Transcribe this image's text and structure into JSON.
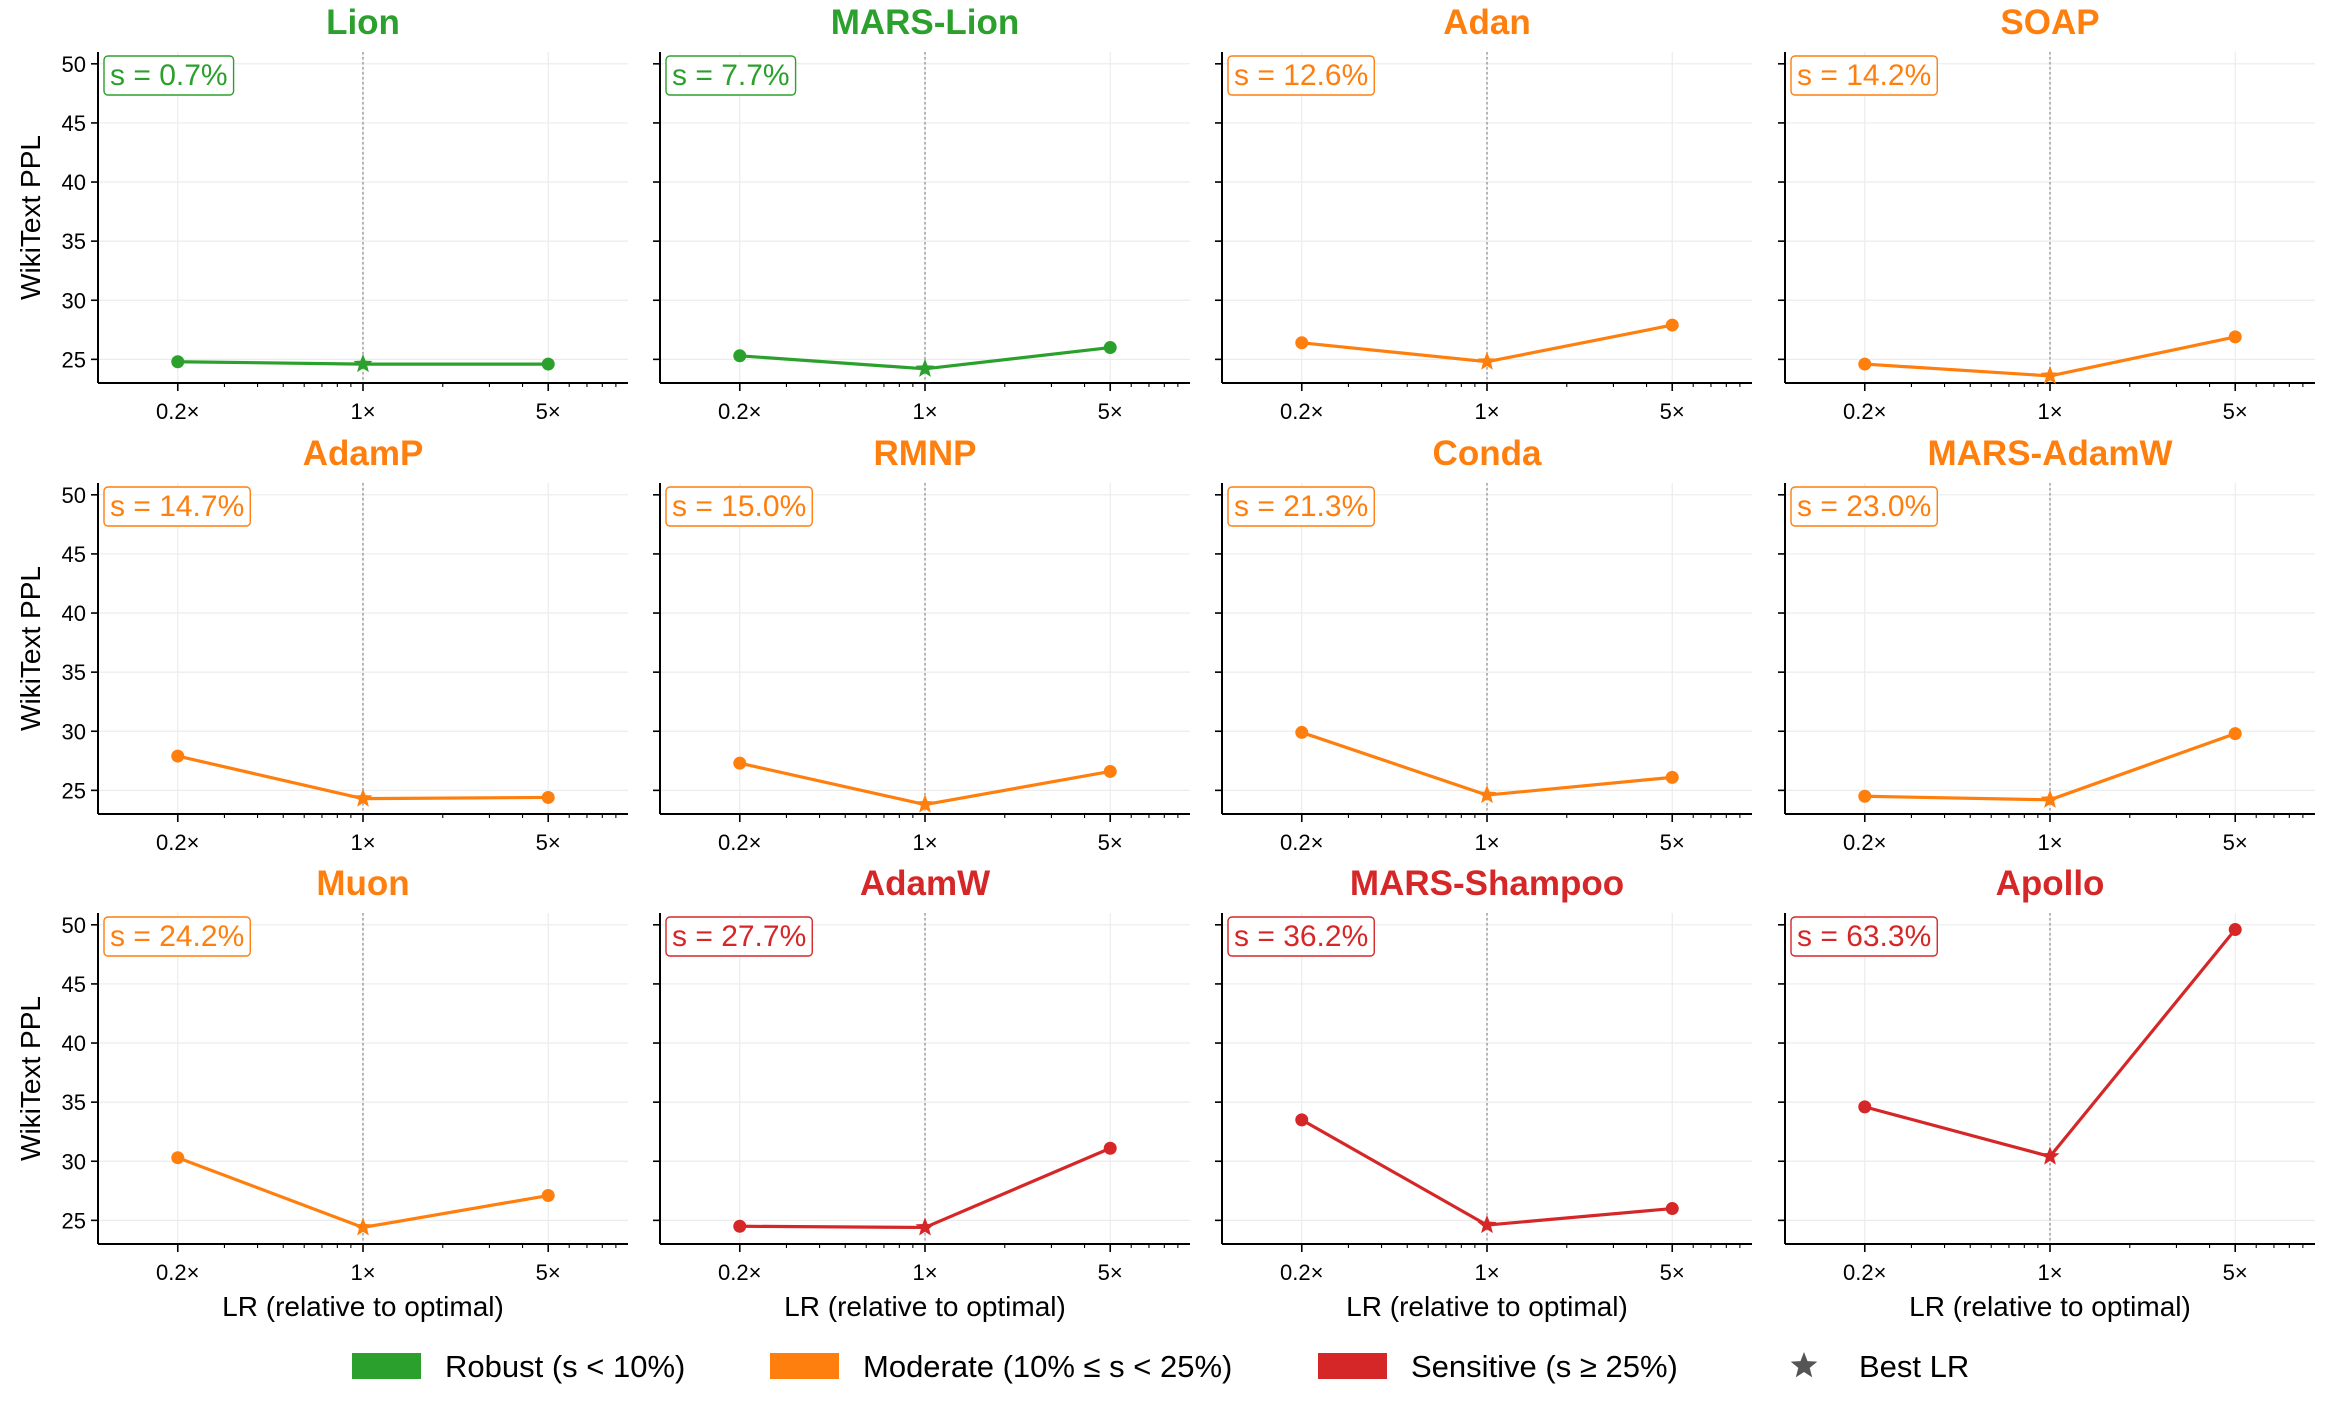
{
  "chart_data": {
    "type": "line",
    "x_categories": [
      "0.2×",
      "1×",
      "5×"
    ],
    "x_multipliers": [
      0.2,
      1,
      5
    ],
    "xscale": "log",
    "xlabel": "LR (relative to optimal)",
    "ylabel": "WikiText PPL",
    "ylim": [
      23,
      51
    ],
    "yticks": [
      25,
      30,
      35,
      40,
      45,
      50
    ],
    "grid": true,
    "colors": {
      "robust": "#2ca02c",
      "moderate": "#ff7f0e",
      "sensitive": "#d62728",
      "star": "#555555"
    },
    "panels": [
      {
        "title": "Lion",
        "sensitivity": "s = 0.7%",
        "category": "robust",
        "values": [
          24.8,
          24.6,
          24.6
        ],
        "best_index": 1
      },
      {
        "title": "MARS-Lion",
        "sensitivity": "s = 7.7%",
        "category": "robust",
        "values": [
          25.3,
          24.2,
          26.0
        ],
        "best_index": 1
      },
      {
        "title": "Adan",
        "sensitivity": "s = 12.6%",
        "category": "moderate",
        "values": [
          26.4,
          24.8,
          27.9
        ],
        "best_index": 1
      },
      {
        "title": "SOAP",
        "sensitivity": "s = 14.2%",
        "category": "moderate",
        "values": [
          24.6,
          23.6,
          26.9
        ],
        "best_index": 1
      },
      {
        "title": "AdamP",
        "sensitivity": "s = 14.7%",
        "category": "moderate",
        "values": [
          27.9,
          24.3,
          24.4
        ],
        "best_index": 1
      },
      {
        "title": "RMNP",
        "sensitivity": "s = 15.0%",
        "category": "moderate",
        "values": [
          27.3,
          23.8,
          26.6
        ],
        "best_index": 1
      },
      {
        "title": "Conda",
        "sensitivity": "s = 21.3%",
        "category": "moderate",
        "values": [
          29.9,
          24.6,
          26.1
        ],
        "best_index": 1
      },
      {
        "title": "MARS-AdamW",
        "sensitivity": "s = 23.0%",
        "category": "moderate",
        "values": [
          24.5,
          24.2,
          29.8
        ],
        "best_index": 1
      },
      {
        "title": "Muon",
        "sensitivity": "s = 24.2%",
        "category": "moderate",
        "values": [
          30.3,
          24.4,
          27.1
        ],
        "best_index": 1
      },
      {
        "title": "AdamW",
        "sensitivity": "s = 27.7%",
        "category": "sensitive",
        "values": [
          24.5,
          24.4,
          31.1
        ],
        "best_index": 1
      },
      {
        "title": "MARS-Shampoo",
        "sensitivity": "s = 36.2%",
        "category": "sensitive",
        "values": [
          33.5,
          24.6,
          26.0
        ],
        "best_index": 1
      },
      {
        "title": "Apollo",
        "sensitivity": "s = 63.3%",
        "category": "sensitive",
        "values": [
          34.6,
          30.4,
          49.6
        ],
        "best_index": 1
      }
    ],
    "legend": {
      "placement": "bottom",
      "items": [
        {
          "key": "robust",
          "label": "Robust  (s < 10%)"
        },
        {
          "key": "moderate",
          "label": "Moderate  (10% ≤ s < 25%)"
        },
        {
          "key": "sensitive",
          "label": "Sensitive  (s ≥ 25%)"
        },
        {
          "key": "star",
          "label": "Best LR"
        }
      ]
    }
  }
}
